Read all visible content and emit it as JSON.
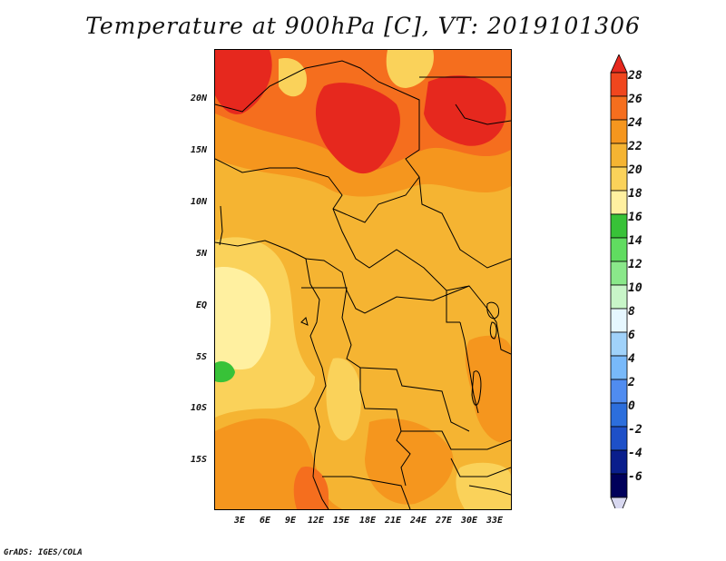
{
  "title": "Temperature at 900hPa [C], VT: 2019101306",
  "credit": "GrADS: IGES/COLA",
  "map": {
    "lat_ticks": [
      "20N",
      "15N",
      "10N",
      "5N",
      "EQ",
      "5S",
      "10S",
      "15S"
    ],
    "lon_ticks": [
      "3E",
      "6E",
      "9E",
      "12E",
      "15E",
      "18E",
      "21E",
      "24E",
      "27E",
      "30E",
      "33E"
    ],
    "lon_range": [
      0,
      35
    ],
    "lat_range": [
      -19,
      24.5
    ]
  },
  "colorbar": {
    "labels": [
      "28",
      "26",
      "24",
      "22",
      "20",
      "18",
      "16",
      "14",
      "12",
      "10",
      "8",
      "6",
      "4",
      "2",
      "0",
      "-2",
      "-4",
      "-6"
    ],
    "colors_top_to_bottom": [
      "#e6281e",
      "#f0461e",
      "#f56e1e",
      "#f5961e",
      "#f5b432",
      "#fad25a",
      "#fff0a0",
      "#38c238",
      "#60dc60",
      "#8ae88a",
      "#c8f5c8",
      "#e6f7ff",
      "#a0d2fa",
      "#78b9fa",
      "#508cf0",
      "#2c6edc",
      "#1e50c8",
      "#0a1e8c",
      "#00005a",
      "#d8d8f0"
    ]
  }
}
